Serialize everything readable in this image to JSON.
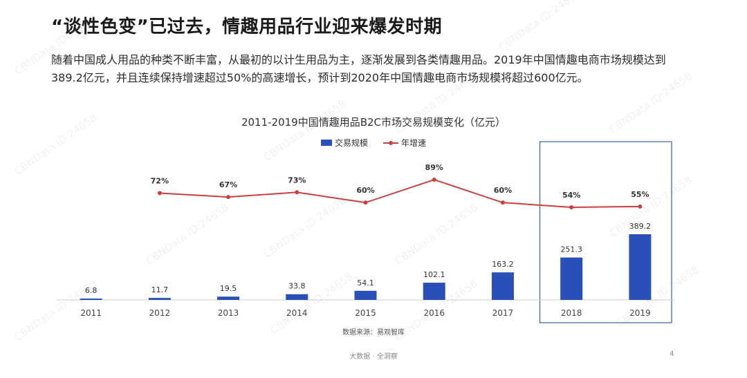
{
  "headline": "“谈性色变”已过去，情趣用品行业迎来爆发时期",
  "intro_text": "随着中国成人用品的种类不断丰富，从最初的以计生用品为主，逐渐发展到各类情趣用品。2019年中国情趣电商市场规模达到389.2亿元，并且连续保持增速超过50%的高速增长，预计到2020年中国情趣电商市场规模将超过600亿元。",
  "source_note": "数据来源：易观智库",
  "footer_brand": "大数据 · 全洞察",
  "page_number": "4",
  "watermark_text": "CBNData ID:24658",
  "colors": {
    "bar": "#2b4fb8",
    "line": "#c9403f",
    "highlight_box": "#3a5f9a",
    "axis": "#cccccc"
  },
  "chart_data": {
    "type": "bar+line",
    "title": "2011-2019中国情趣用品B2C市场交易规模变化（亿元）",
    "legend_position": "top-center",
    "categories": [
      "2011",
      "2012",
      "2013",
      "2014",
      "2015",
      "2016",
      "2017",
      "2018",
      "2019"
    ],
    "series": [
      {
        "name": "交易规模",
        "type": "bar",
        "values": [
          6.8,
          11.7,
          19.5,
          33.8,
          54.1,
          102.1,
          163.2,
          251.3,
          389.2
        ],
        "labels": [
          "6.8",
          "11.7",
          "19.5",
          "33.8",
          "54.1",
          "102.1",
          "163.2",
          "251.3",
          "389.2"
        ]
      },
      {
        "name": "年增速",
        "type": "line",
        "values": [
          null,
          72,
          67,
          73,
          60,
          89,
          60,
          54,
          55
        ],
        "labels": [
          "",
          "72%",
          "67%",
          "73%",
          "60%",
          "89%",
          "60%",
          "54%",
          "55%"
        ]
      }
    ],
    "highlighted_categories": [
      "2018",
      "2019"
    ],
    "grid": false
  }
}
